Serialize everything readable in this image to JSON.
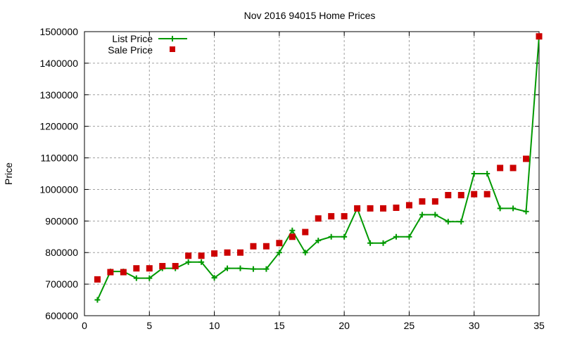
{
  "chart_data": {
    "type": "line",
    "title": "Nov 2016 94015 Home Prices",
    "xlabel": "",
    "ylabel": "Price",
    "xlim": [
      0,
      35
    ],
    "ylim": [
      600000,
      1500000
    ],
    "x_ticks": [
      0,
      5,
      10,
      15,
      20,
      25,
      30,
      35
    ],
    "y_ticks": [
      600000,
      700000,
      800000,
      900000,
      1000000,
      1100000,
      1200000,
      1300000,
      1400000,
      1500000
    ],
    "grid": true,
    "legend_position": "top-left",
    "x": [
      1,
      2,
      3,
      4,
      5,
      6,
      7,
      8,
      9,
      10,
      11,
      12,
      13,
      14,
      15,
      16,
      17,
      18,
      19,
      20,
      21,
      22,
      23,
      24,
      25,
      26,
      27,
      28,
      29,
      30,
      31,
      32,
      33,
      34,
      35
    ],
    "series": [
      {
        "name": "List Price",
        "style": "linespoints",
        "marker": "plus",
        "color": "#009900",
        "values": [
          650000,
          740000,
          740000,
          719000,
          719000,
          750000,
          750000,
          770000,
          770000,
          720000,
          750000,
          750000,
          748000,
          748000,
          800000,
          870000,
          800000,
          838000,
          850000,
          850000,
          940000,
          830000,
          830000,
          850000,
          850000,
          920000,
          920000,
          898000,
          898000,
          1050000,
          1050000,
          940000,
          940000,
          930000,
          1485000
        ]
      },
      {
        "name": "Sale Price",
        "style": "points",
        "marker": "square",
        "color": "#cc0000",
        "values": [
          715000,
          738000,
          738000,
          750000,
          750000,
          757000,
          757000,
          790000,
          790000,
          797000,
          800000,
          800000,
          820000,
          820000,
          830000,
          850000,
          865000,
          908000,
          915000,
          915000,
          940000,
          940000,
          940000,
          942000,
          950000,
          962000,
          962000,
          982000,
          982000,
          985000,
          985000,
          1068000,
          1068000,
          1097000,
          1485000
        ]
      }
    ]
  }
}
